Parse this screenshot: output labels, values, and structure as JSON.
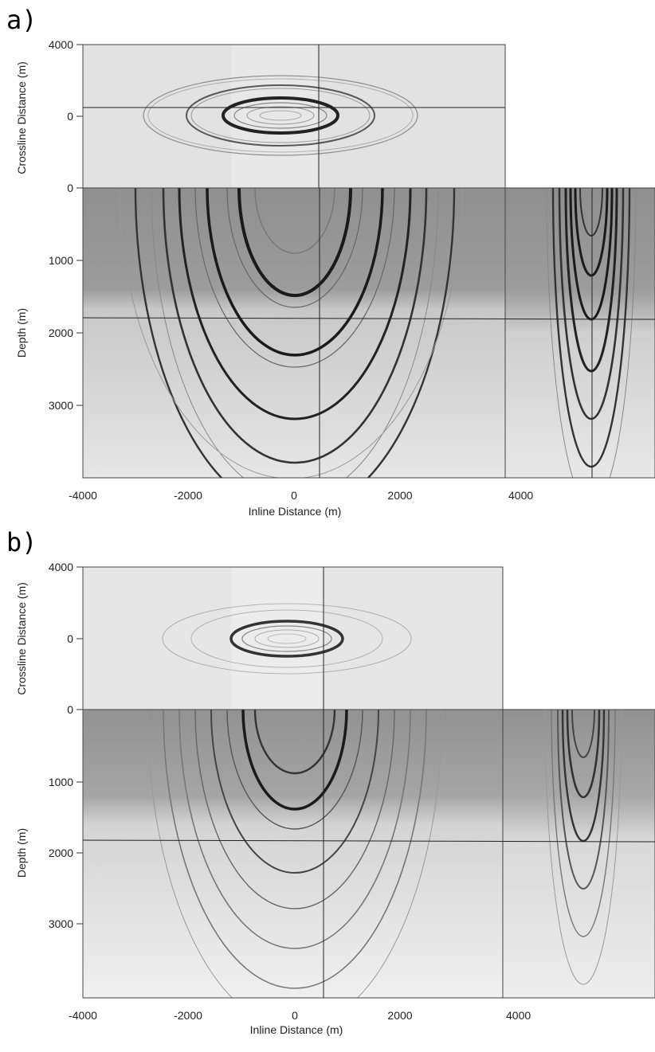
{
  "figure": {
    "panels": [
      {
        "label": "a)",
        "crossline_label": "Crossline Distance (m)",
        "depth_label": "Depth (m)",
        "inline_label": "Inline Distance (m)",
        "crossline_ticks": [
          "4000",
          "0",
          "0"
        ],
        "depth_ticks": [
          "1000",
          "2000",
          "3000"
        ],
        "inline_ticks": [
          "-4000",
          "-2000",
          "0",
          "2000",
          "4000"
        ]
      },
      {
        "label": "b)",
        "crossline_label": "Crossline Distance (m)",
        "depth_label": "Depth (m)",
        "inline_label": "Inline Distance (m)",
        "crossline_ticks": [
          "4000",
          "0",
          "0"
        ],
        "depth_ticks": [
          "1000",
          "2000",
          "3000"
        ],
        "inline_ticks": [
          "-4000",
          "-2000",
          "0",
          "2000",
          "4000"
        ]
      }
    ]
  },
  "colors": {
    "background": "#ffffff",
    "slice_light": "#e4e4e4",
    "slice_dark": "#9a9a9a",
    "wavefront": "#333333"
  }
}
